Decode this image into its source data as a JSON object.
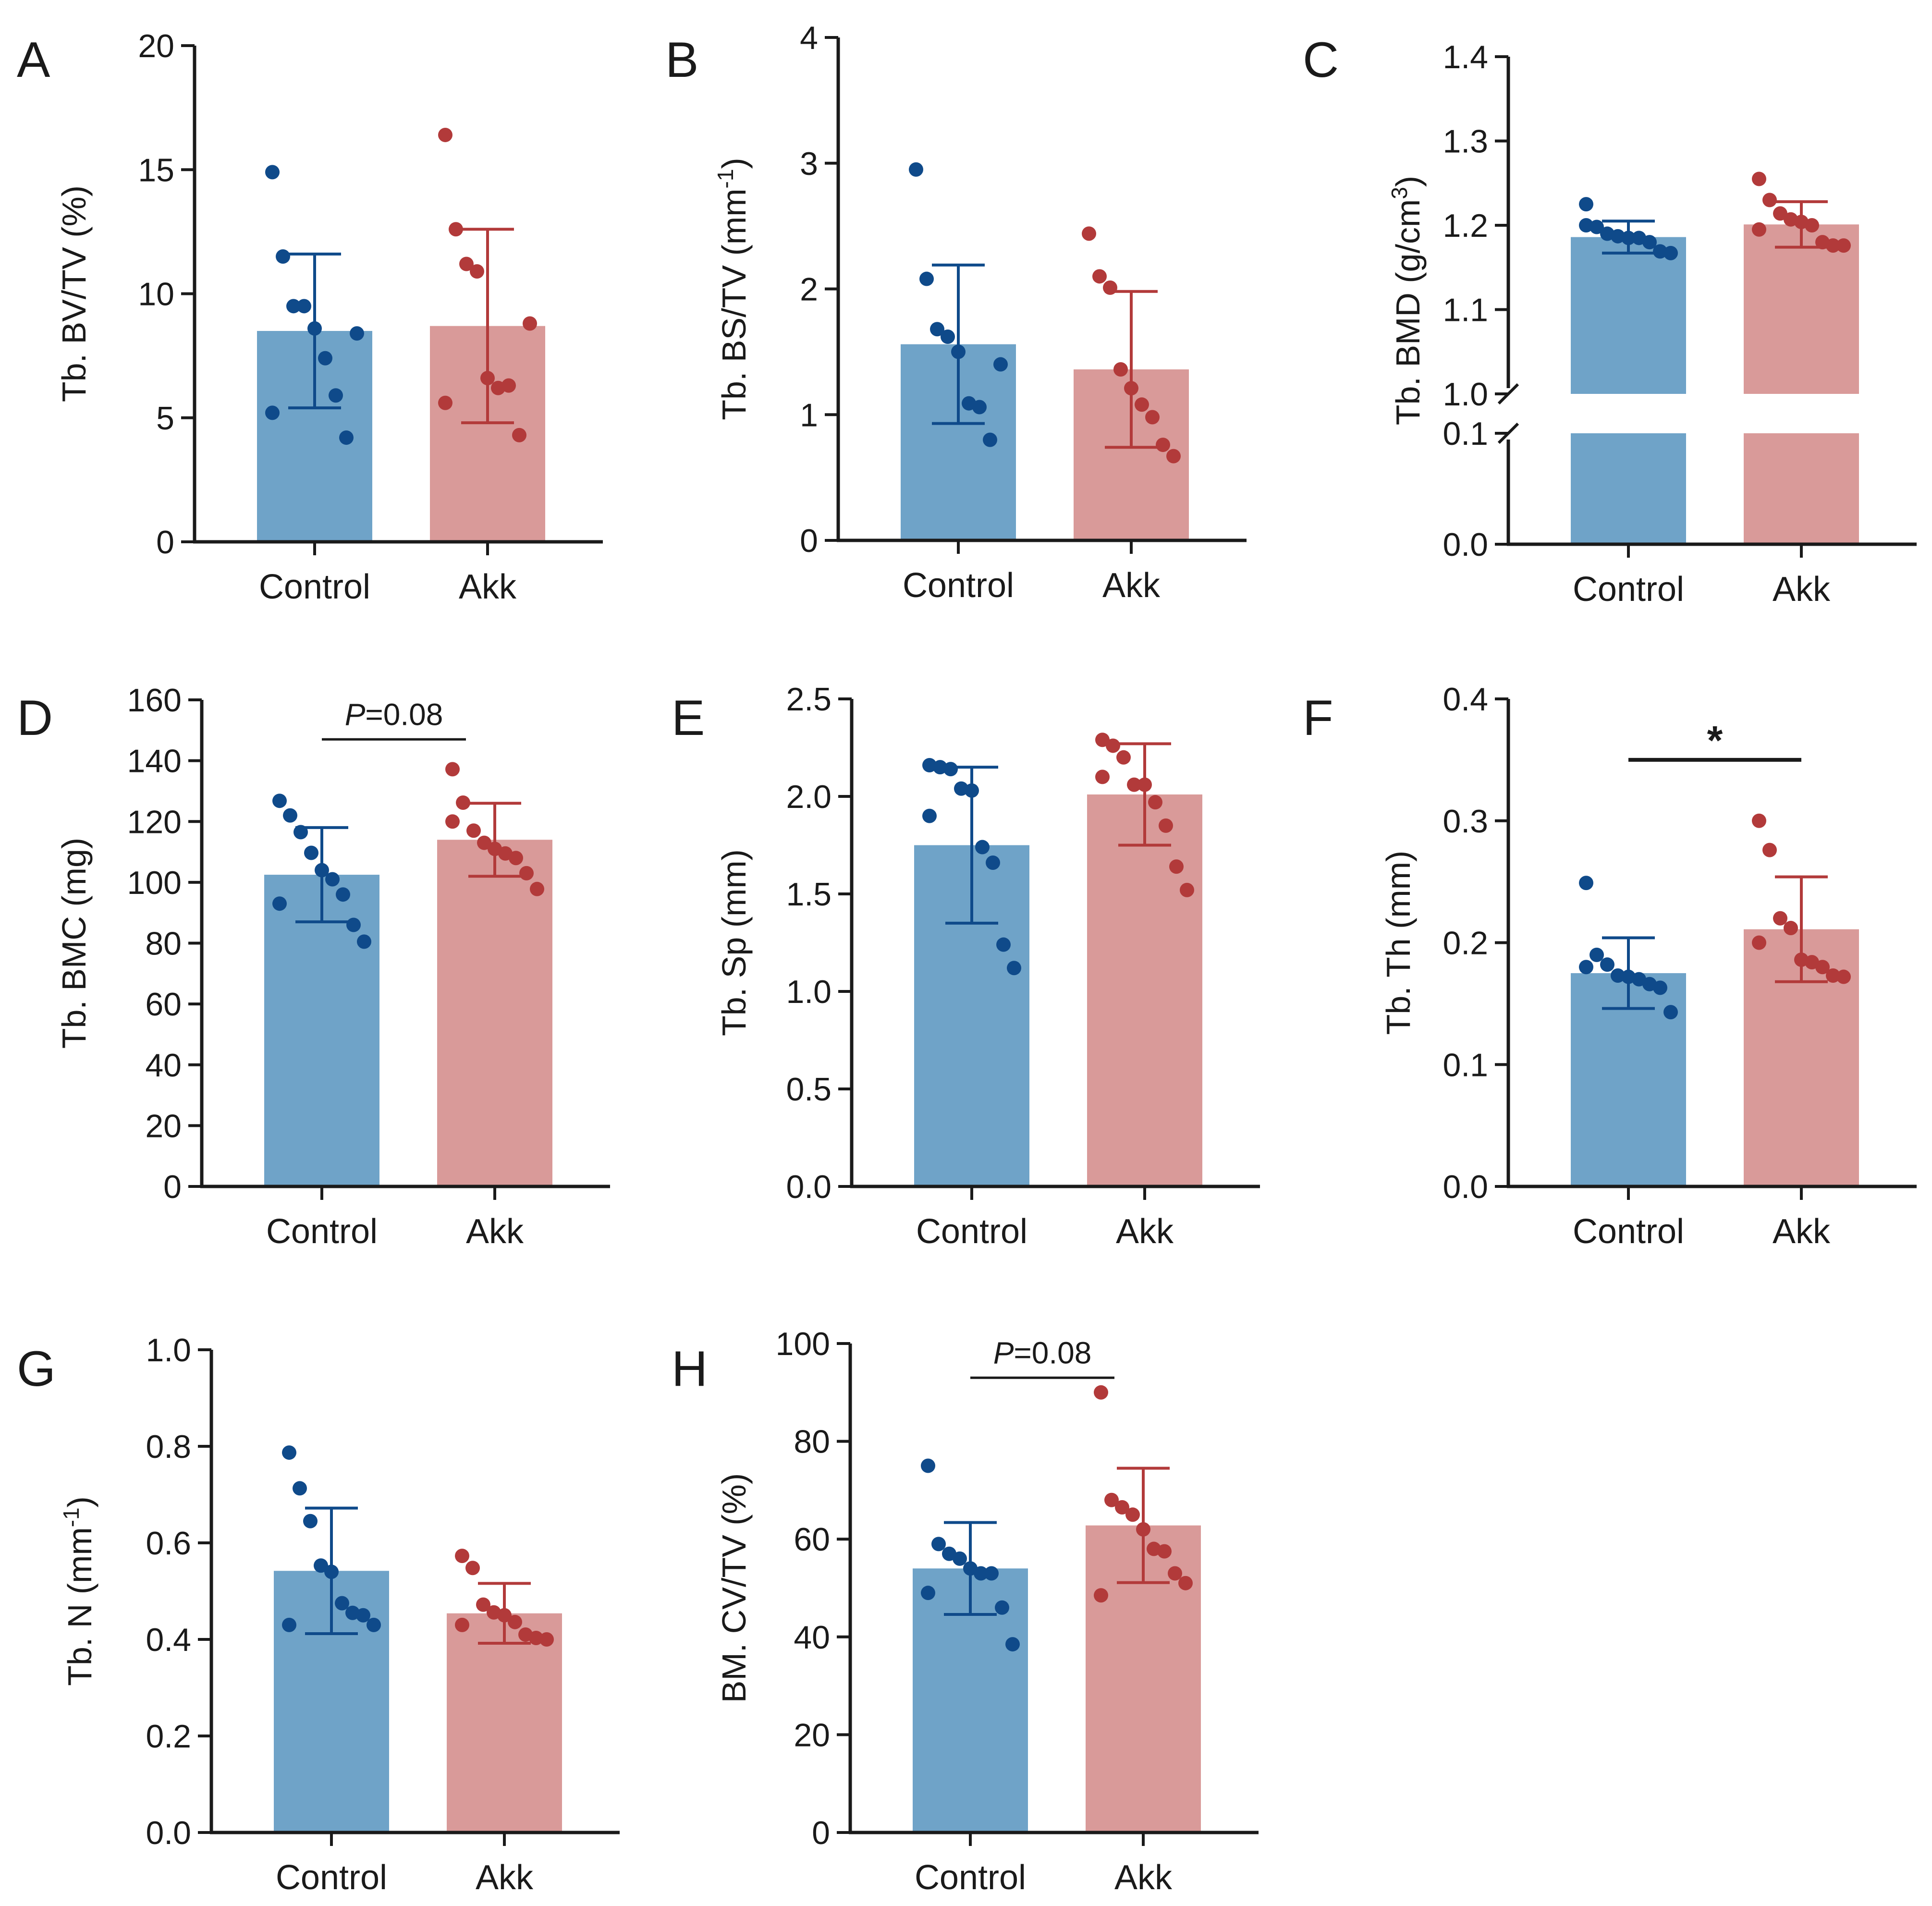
{
  "colors": {
    "control_bar": "#6fa3c8",
    "akk_bar": "#d99a99",
    "control_point": "#0f4a8a",
    "akk_point": "#b23a3a",
    "axis": "#1a1a1a"
  },
  "chart_data": [
    {
      "panel": "A",
      "type": "bar",
      "ylabel": "Tb. BV/TV (%)",
      "categories": [
        "Control",
        "Akk"
      ],
      "ylim": [
        0,
        20
      ],
      "ticks": [
        "0",
        "5",
        "10",
        "15",
        "20"
      ],
      "tick_values": [
        0,
        5,
        10,
        15,
        20
      ],
      "means": [
        8.5,
        8.7
      ],
      "sd": [
        3.1,
        3.9
      ],
      "points": [
        [
          14.9,
          11.5,
          9.5,
          9.5,
          8.6,
          7.4,
          5.9,
          4.2,
          8.4,
          5.2
        ],
        [
          16.4,
          12.6,
          11.2,
          10.9,
          6.6,
          6.2,
          6.3,
          4.3,
          8.8,
          5.6
        ]
      ],
      "annotation": ""
    },
    {
      "panel": "B",
      "type": "bar",
      "ylabel": "Tb. BS/TV (mm",
      "ylabel_sup": "-1",
      "ylabel_end": ")",
      "categories": [
        "Control",
        "Akk"
      ],
      "ylim": [
        0,
        4
      ],
      "ticks": [
        "0",
        "1",
        "2",
        "3",
        "4"
      ],
      "tick_values": [
        0,
        1,
        2,
        3,
        4
      ],
      "means": [
        1.56,
        1.36
      ],
      "sd": [
        0.63,
        0.62
      ],
      "points": [
        [
          2.95,
          2.08,
          1.68,
          1.62,
          1.5,
          1.09,
          1.06,
          0.8,
          1.4
        ],
        [
          2.44,
          2.1,
          2.01,
          1.36,
          1.21,
          1.08,
          0.98,
          0.76,
          0.67
        ]
      ],
      "annotation": ""
    },
    {
      "panel": "C",
      "type": "bar",
      "ylabel": "Tb. BMD (g/cm",
      "ylabel_sup": "3",
      "ylabel_end": ")",
      "categories": [
        "Control",
        "Akk"
      ],
      "broken_axis": true,
      "ylim_upper": [
        1.0,
        1.4
      ],
      "ticks_upper": [
        "1.0",
        "1.1",
        "1.2",
        "1.3",
        "1.4"
      ],
      "tick_values_upper": [
        1.0,
        1.1,
        1.2,
        1.3,
        1.4
      ],
      "ylim_lower": [
        0.0,
        0.1
      ],
      "ticks_lower": [
        "0.0",
        "0.1"
      ],
      "tick_values_lower": [
        0.0,
        0.1
      ],
      "means": [
        1.186,
        1.201
      ],
      "sd": [
        0.019,
        0.027
      ],
      "points": [
        [
          1.225,
          1.198,
          1.19,
          1.187,
          1.185,
          1.185,
          1.18,
          1.169,
          1.167,
          1.2
        ],
        [
          1.255,
          1.23,
          1.214,
          1.207,
          1.204,
          1.2,
          1.18,
          1.176,
          1.176,
          1.195
        ]
      ],
      "annotation": ""
    },
    {
      "panel": "D",
      "type": "bar",
      "ylabel": "Tb. BMC (mg)",
      "categories": [
        "Control",
        "Akk"
      ],
      "ylim": [
        0,
        160
      ],
      "ticks": [
        "0",
        "20",
        "40",
        "60",
        "80",
        "100",
        "120",
        "140",
        "160"
      ],
      "tick_values": [
        0,
        20,
        40,
        60,
        80,
        100,
        120,
        140,
        160
      ],
      "means": [
        102.5,
        114
      ],
      "sd": [
        15.5,
        12
      ],
      "points": [
        [
          126.8,
          122,
          116.5,
          109.7,
          104,
          101,
          96,
          86,
          80.5,
          93
        ],
        [
          137.2,
          126.2,
          117,
          113,
          111,
          109.5,
          108,
          103,
          97.8,
          120
        ]
      ],
      "annotation": "P=0.08",
      "annotation_italic": "P",
      "annotation_rest": "=0.08"
    },
    {
      "panel": "E",
      "type": "bar",
      "ylabel": "Tb. Sp (mm)",
      "categories": [
        "Control",
        "Akk"
      ],
      "ylim": [
        0,
        2.5
      ],
      "ticks": [
        "0.0",
        "0.5",
        "1.0",
        "1.5",
        "2.0",
        "2.5"
      ],
      "tick_values": [
        0,
        0.5,
        1.0,
        1.5,
        2.0,
        2.5
      ],
      "means": [
        1.75,
        2.01
      ],
      "sd": [
        0.4,
        0.26
      ],
      "points": [
        [
          2.16,
          2.15,
          2.14,
          2.04,
          2.03,
          1.74,
          1.66,
          1.24,
          1.12,
          1.9
        ],
        [
          2.29,
          2.26,
          2.2,
          2.06,
          2.06,
          1.97,
          1.85,
          1.64,
          1.52,
          2.1
        ]
      ],
      "annotation": ""
    },
    {
      "panel": "F",
      "type": "bar",
      "ylabel": "Tb. Th (mm)",
      "categories": [
        "Control",
        "Akk"
      ],
      "ylim": [
        0,
        0.4
      ],
      "ticks": [
        "0.0",
        "0.1",
        "0.2",
        "0.3",
        "0.4"
      ],
      "tick_values": [
        0,
        0.1,
        0.2,
        0.3,
        0.4
      ],
      "means": [
        0.175,
        0.211
      ],
      "sd": [
        0.029,
        0.043
      ],
      "points": [
        [
          0.249,
          0.19,
          0.182,
          0.173,
          0.172,
          0.17,
          0.166,
          0.163,
          0.143,
          0.18
        ],
        [
          0.3,
          0.276,
          0.22,
          0.212,
          0.186,
          0.184,
          0.18,
          0.173,
          0.172,
          0.2
        ]
      ],
      "annotation": "*"
    },
    {
      "panel": "G",
      "type": "bar",
      "ylabel": "Tb. N (mm",
      "ylabel_sup": "-1",
      "ylabel_end": ")",
      "categories": [
        "Control",
        "Akk"
      ],
      "ylim": [
        0,
        1.0
      ],
      "ticks": [
        "0.0",
        "0.2",
        "0.4",
        "0.6",
        "0.8",
        "1.0"
      ],
      "tick_values": [
        0,
        0.2,
        0.4,
        0.6,
        0.8,
        1.0
      ],
      "means": [
        0.542,
        0.454
      ],
      "sd": [
        0.13,
        0.062
      ],
      "points": [
        [
          0.787,
          0.713,
          0.645,
          0.553,
          0.54,
          0.475,
          0.455,
          0.45,
          0.43,
          0.43
        ],
        [
          0.573,
          0.548,
          0.472,
          0.456,
          0.45,
          0.436,
          0.41,
          0.403,
          0.4,
          0.43
        ]
      ],
      "annotation": ""
    },
    {
      "panel": "H",
      "type": "bar",
      "ylabel": "BM. CV/TV (%)",
      "categories": [
        "Control",
        "Akk"
      ],
      "ylim": [
        0,
        100
      ],
      "ticks": [
        "0",
        "20",
        "40",
        "60",
        "80",
        "100"
      ],
      "tick_values": [
        0,
        20,
        40,
        60,
        80,
        100
      ],
      "means": [
        54,
        62.8
      ],
      "sd": [
        9.4,
        11.7
      ],
      "points": [
        [
          75,
          59,
          57,
          56,
          54,
          53,
          53,
          46,
          38.5,
          49
        ],
        [
          90,
          68,
          66.5,
          65,
          62,
          58,
          57.5,
          53,
          51,
          48.5
        ]
      ],
      "annotation": "P=0.08",
      "annotation_italic": "P",
      "annotation_rest": "=0.08"
    }
  ]
}
